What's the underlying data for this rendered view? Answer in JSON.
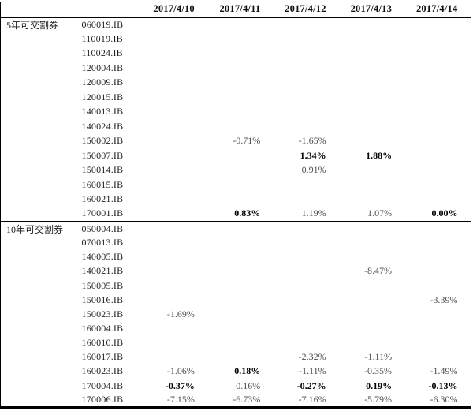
{
  "colors": {
    "value_normal": "#4f4f4f",
    "value_bold": "#000000",
    "bond_code": "#1f1f1f",
    "rule_line": "#000000",
    "background": "#ffffff"
  },
  "table": {
    "date_columns": [
      "2017/4/10",
      "2017/4/11",
      "2017/4/12",
      "2017/4/13",
      "2017/4/14"
    ],
    "sections": [
      {
        "label": "5年可交割券",
        "rows": [
          {
            "code": "060019.IB",
            "values": [
              "",
              "",
              "",
              "",
              ""
            ],
            "bold": [
              false,
              false,
              false,
              false,
              false
            ]
          },
          {
            "code": "110019.IB",
            "values": [
              "",
              "",
              "",
              "",
              ""
            ],
            "bold": [
              false,
              false,
              false,
              false,
              false
            ]
          },
          {
            "code": "110024.IB",
            "values": [
              "",
              "",
              "",
              "",
              ""
            ],
            "bold": [
              false,
              false,
              false,
              false,
              false
            ]
          },
          {
            "code": "120004.IB",
            "values": [
              "",
              "",
              "",
              "",
              ""
            ],
            "bold": [
              false,
              false,
              false,
              false,
              false
            ]
          },
          {
            "code": "120009.IB",
            "values": [
              "",
              "",
              "",
              "",
              ""
            ],
            "bold": [
              false,
              false,
              false,
              false,
              false
            ]
          },
          {
            "code": "120015.IB",
            "values": [
              "",
              "",
              "",
              "",
              ""
            ],
            "bold": [
              false,
              false,
              false,
              false,
              false
            ]
          },
          {
            "code": "140013.IB",
            "values": [
              "",
              "",
              "",
              "",
              ""
            ],
            "bold": [
              false,
              false,
              false,
              false,
              false
            ]
          },
          {
            "code": "140024.IB",
            "values": [
              "",
              "",
              "",
              "",
              ""
            ],
            "bold": [
              false,
              false,
              false,
              false,
              false
            ]
          },
          {
            "code": "150002.IB",
            "values": [
              "",
              "-0.71%",
              "-1.65%",
              "",
              ""
            ],
            "bold": [
              false,
              false,
              false,
              false,
              false
            ]
          },
          {
            "code": "150007.IB",
            "values": [
              "",
              "",
              "1.34%",
              "1.88%",
              ""
            ],
            "bold": [
              false,
              false,
              true,
              true,
              false
            ]
          },
          {
            "code": "150014.IB",
            "values": [
              "",
              "",
              "0.91%",
              "",
              ""
            ],
            "bold": [
              false,
              false,
              false,
              false,
              false
            ]
          },
          {
            "code": "160015.IB",
            "values": [
              "",
              "",
              "",
              "",
              ""
            ],
            "bold": [
              false,
              false,
              false,
              false,
              false
            ]
          },
          {
            "code": "160021.IB",
            "values": [
              "",
              "",
              "",
              "",
              ""
            ],
            "bold": [
              false,
              false,
              false,
              false,
              false
            ]
          },
          {
            "code": "170001.IB",
            "values": [
              "",
              "0.83%",
              "1.19%",
              "1.07%",
              "0.00%"
            ],
            "bold": [
              false,
              true,
              false,
              false,
              true
            ]
          }
        ]
      },
      {
        "label": "10年可交割券",
        "rows": [
          {
            "code": "050004.IB",
            "values": [
              "",
              "",
              "",
              "",
              ""
            ],
            "bold": [
              false,
              false,
              false,
              false,
              false
            ]
          },
          {
            "code": "070013.IB",
            "values": [
              "",
              "",
              "",
              "",
              ""
            ],
            "bold": [
              false,
              false,
              false,
              false,
              false
            ]
          },
          {
            "code": "140005.IB",
            "values": [
              "",
              "",
              "",
              "",
              ""
            ],
            "bold": [
              false,
              false,
              false,
              false,
              false
            ]
          },
          {
            "code": "140021.IB",
            "values": [
              "",
              "",
              "",
              "-8.47%",
              ""
            ],
            "bold": [
              false,
              false,
              false,
              false,
              false
            ]
          },
          {
            "code": "150005.IB",
            "values": [
              "",
              "",
              "",
              "",
              ""
            ],
            "bold": [
              false,
              false,
              false,
              false,
              false
            ]
          },
          {
            "code": "150016.IB",
            "values": [
              "",
              "",
              "",
              "",
              "-3.39%"
            ],
            "bold": [
              false,
              false,
              false,
              false,
              false
            ]
          },
          {
            "code": "150023.IB",
            "values": [
              "-1.69%",
              "",
              "",
              "",
              ""
            ],
            "bold": [
              false,
              false,
              false,
              false,
              false
            ]
          },
          {
            "code": "160004.IB",
            "values": [
              "",
              "",
              "",
              "",
              ""
            ],
            "bold": [
              false,
              false,
              false,
              false,
              false
            ]
          },
          {
            "code": "160010.IB",
            "values": [
              "",
              "",
              "",
              "",
              ""
            ],
            "bold": [
              false,
              false,
              false,
              false,
              false
            ]
          },
          {
            "code": "160017.IB",
            "values": [
              "",
              "",
              "-2.32%",
              "-1.11%",
              ""
            ],
            "bold": [
              false,
              false,
              false,
              false,
              false
            ]
          },
          {
            "code": "160023.IB",
            "values": [
              "-1.06%",
              "0.18%",
              "-1.11%",
              "-0.35%",
              "-1.49%"
            ],
            "bold": [
              false,
              true,
              false,
              false,
              false
            ]
          },
          {
            "code": "170004.IB",
            "values": [
              "-0.37%",
              "0.16%",
              "-0.27%",
              "0.19%",
              "-0.13%"
            ],
            "bold": [
              true,
              false,
              true,
              true,
              true
            ]
          },
          {
            "code": "170006.IB",
            "values": [
              "-7.15%",
              "-6.73%",
              "-7.16%",
              "-5.79%",
              "-6.30%"
            ],
            "bold": [
              false,
              false,
              false,
              false,
              false
            ]
          }
        ]
      }
    ]
  }
}
